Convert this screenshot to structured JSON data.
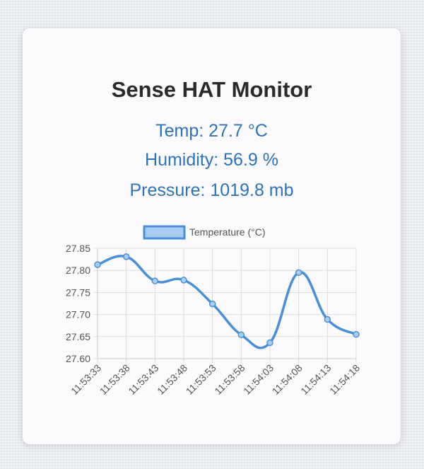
{
  "header": {
    "title": "Sense HAT Monitor"
  },
  "readings": {
    "temp": "Temp: 27.7 °C",
    "humidity": "Humidity: 56.9 %",
    "pressure": "Pressure: 1019.8 mb"
  },
  "colors": {
    "title": "#2a2a2a",
    "reading": "#2f73b6",
    "line": "#4a8fd6",
    "point_fill": "#a9cdf1"
  },
  "chart_data": {
    "type": "line",
    "series": [
      {
        "name": "Temperature (°C)",
        "values": [
          27.813,
          27.831,
          27.776,
          27.778,
          27.724,
          27.654,
          27.636,
          27.795,
          27.689,
          27.655
        ]
      }
    ],
    "x": [
      "11:53:33",
      "11:53:38",
      "11:53:43",
      "11:53:48",
      "11:53:53",
      "11:53:58",
      "11:54:03",
      "11:54:08",
      "11:54:13",
      "11:54:18"
    ],
    "y_ticks": [
      "27.85",
      "27.80",
      "27.75",
      "27.70",
      "27.65",
      "27.60"
    ],
    "ylim": [
      27.6,
      27.85
    ],
    "grid": true,
    "legend": "top-center",
    "curve": "smooth",
    "title": "",
    "xlabel": "",
    "ylabel": ""
  }
}
